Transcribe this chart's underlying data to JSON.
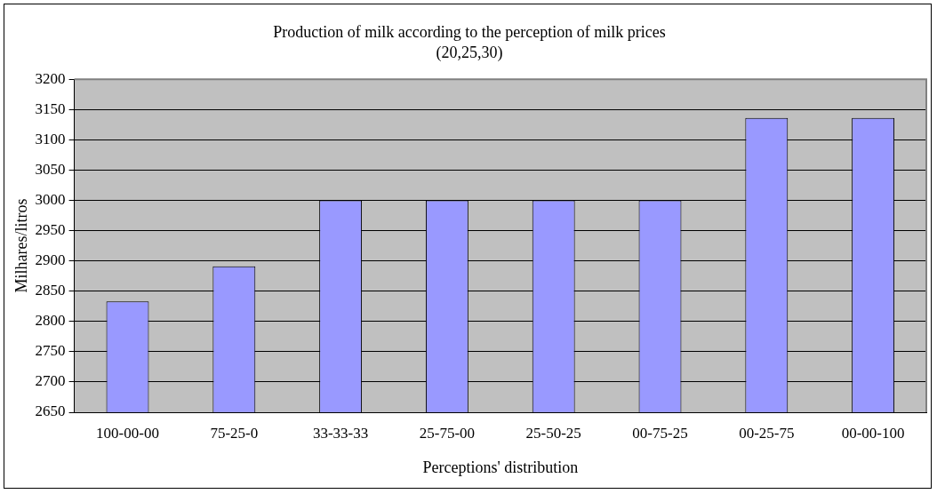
{
  "chart_data": {
    "type": "bar",
    "title": "Production of milk according to the perception of milk prices",
    "subtitle": "(20,25,30)",
    "xlabel": "Perceptions' distribution",
    "ylabel": "Milhares/litros",
    "categories": [
      "100-00-00",
      "75-25-0",
      "33-33-33",
      "25-75-00",
      "25-50-25",
      "00-75-25",
      "00-25-75",
      "00-00-100"
    ],
    "values": [
      2833,
      2891,
      3000,
      3000,
      3000,
      3000,
      3136,
      3136
    ],
    "color": "#9999ff",
    "ylim": [
      2650,
      3200
    ],
    "yticks": [
      2650,
      2700,
      2750,
      2800,
      2850,
      2900,
      2950,
      3000,
      3050,
      3100,
      3150,
      3200
    ],
    "grid": "y",
    "legend": false
  }
}
